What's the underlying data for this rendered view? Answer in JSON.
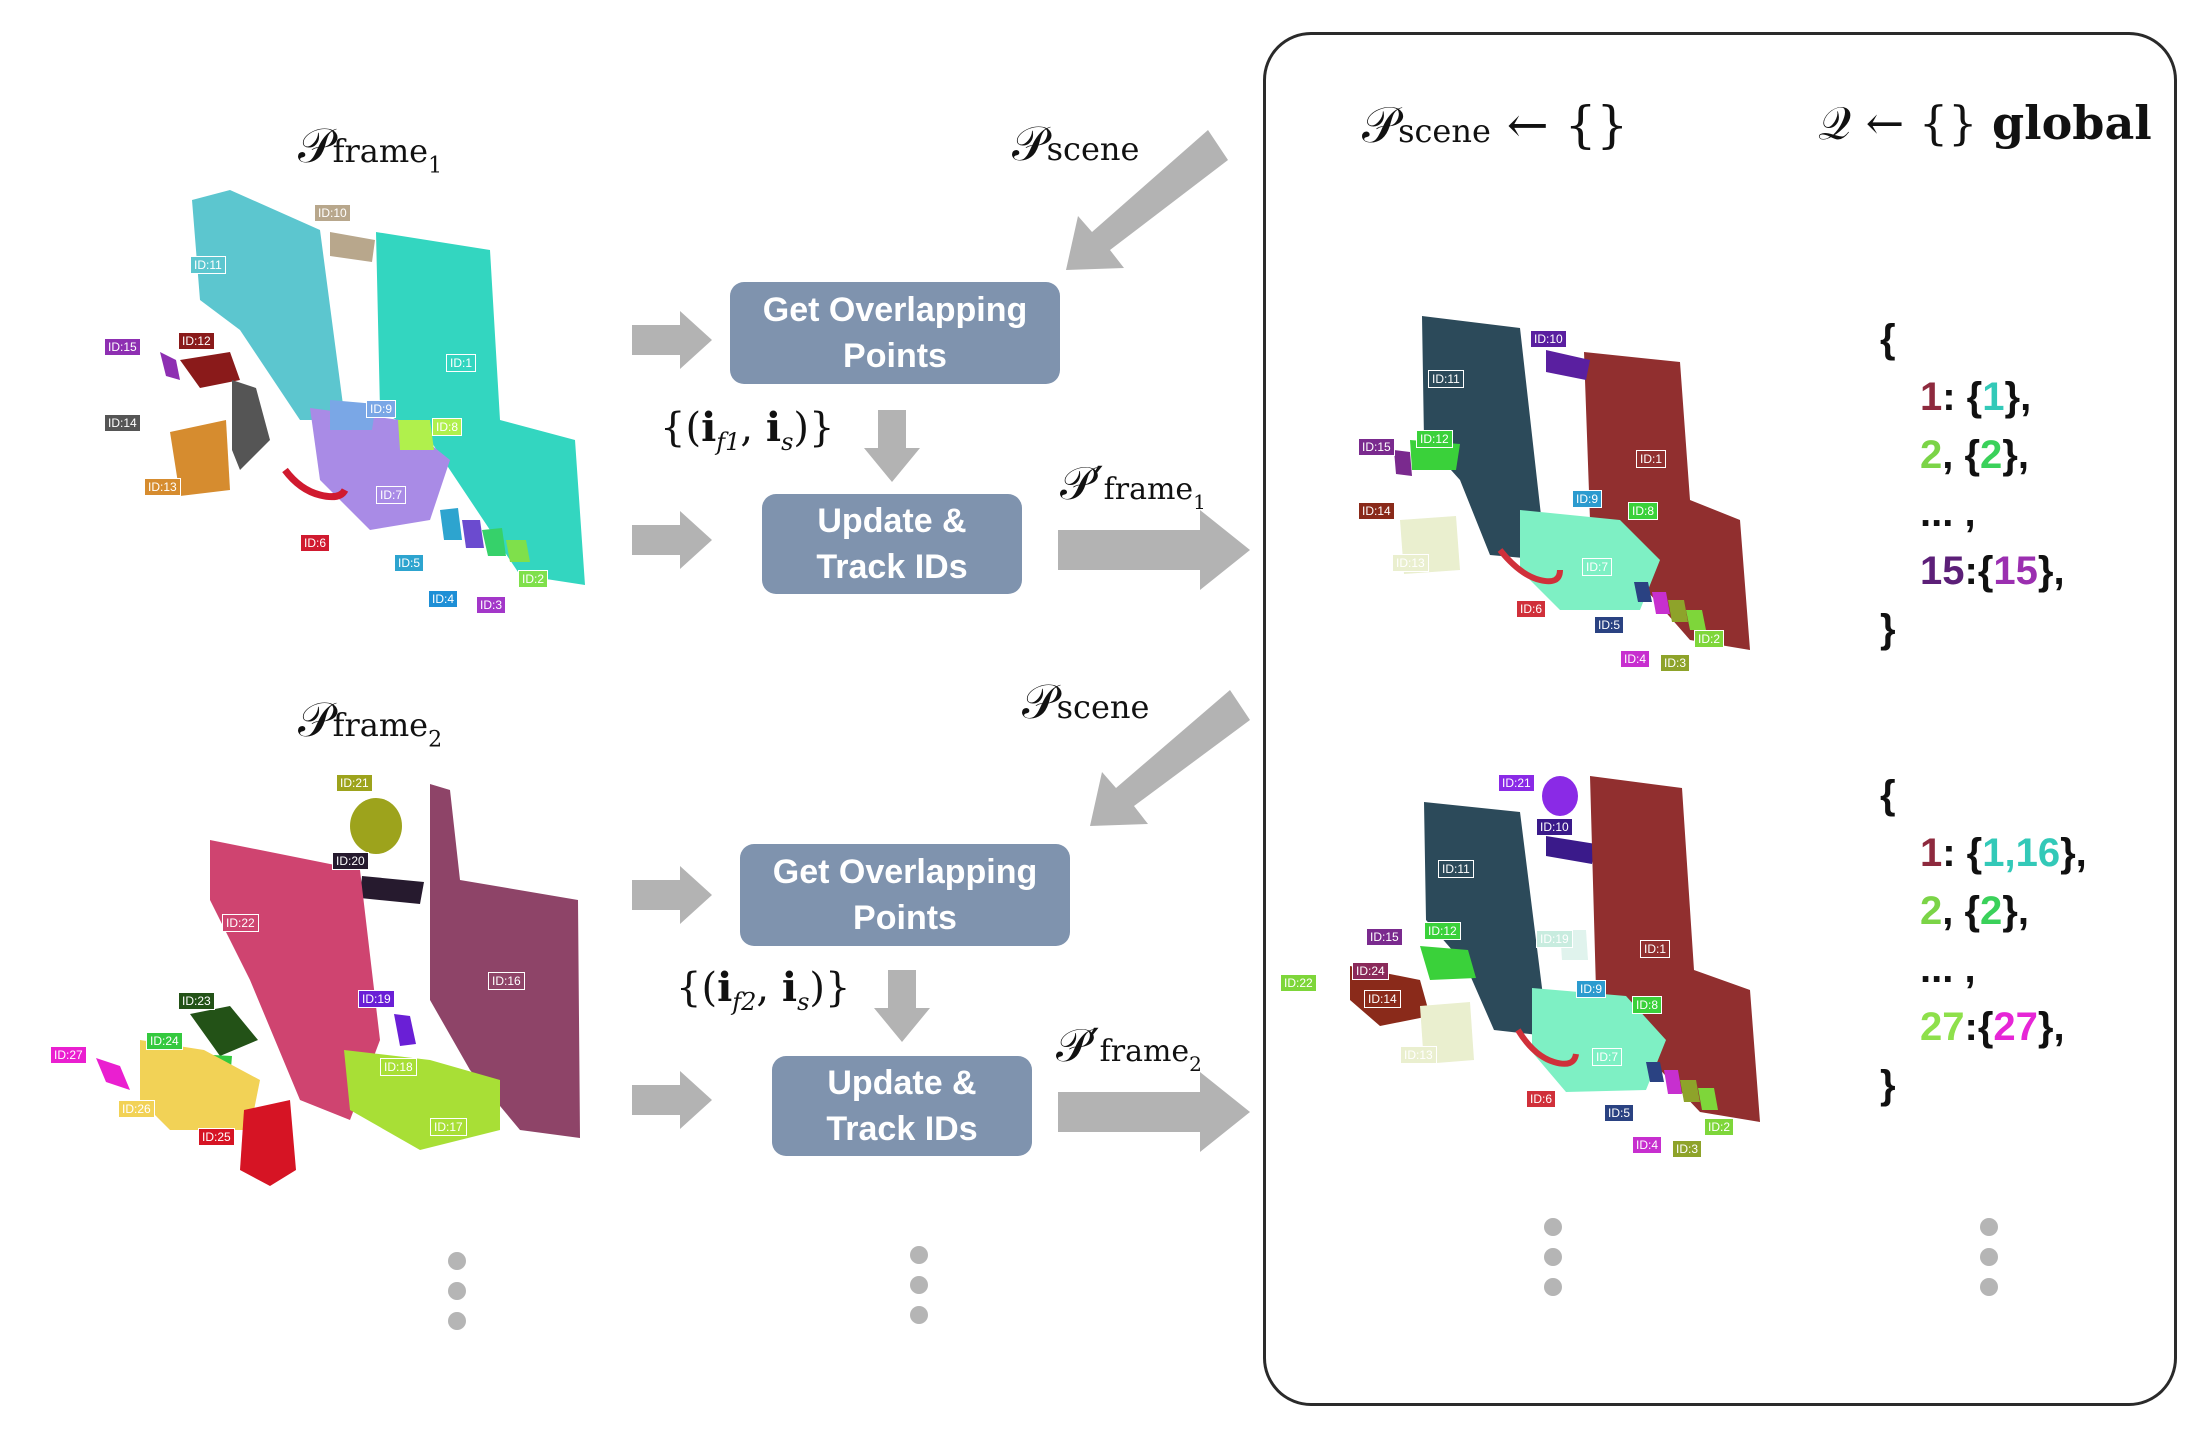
{
  "colors": {
    "box": "#7f93ae",
    "arrow": "#b3b3b3",
    "panel_border": "#2a2a2a"
  },
  "labels": {
    "p_frame1": "𝒫frame₁",
    "p_frame2": "𝒫frame₂",
    "p_scene_1": "𝒫scene",
    "p_scene_2": "𝒫scene",
    "p_prime_frame1": "𝒫′frame₁",
    "p_prime_frame2": "𝒫′frame₂",
    "pair1": "{(i_f1, i_s)}",
    "pair2": "{(i_f2, i_s)}",
    "init_scene": "𝒫scene ← {}",
    "init_q": "𝒬 ← {}",
    "global_word": "global"
  },
  "math": {
    "P": "𝒫",
    "sub_frame": "frame",
    "sub_scene": "scene",
    "sub_1": "1",
    "sub_2": "2",
    "prime": "′",
    "pair_open": "{(",
    "pair_i": "i",
    "pair_f1": "f1",
    "pair_f2": "f2",
    "pair_comma": ",",
    "pair_s": "s",
    "pair_close": ")}",
    "assign": "← {}",
    "Q": "𝒬"
  },
  "boxes": {
    "get_overlap_1": {
      "line1": "Get Overlapping",
      "line2": "Points"
    },
    "update_1": {
      "line1": "Update &",
      "line2": "Track IDs"
    },
    "get_overlap_2": {
      "line1": "Get Overlapping",
      "line2": "Points"
    },
    "update_2": {
      "line1": "Update &",
      "line2": "Track IDs"
    }
  },
  "dict1": {
    "open": "{",
    "r1_key": "1",
    "r1_sep": ": {",
    "r1_val": "1",
    "r1_end": "},",
    "r2_key": "2",
    "r2_sep": ", {",
    "r2_val": "2",
    "r2_end": "},",
    "r3": "... ,",
    "r4_key": "15",
    "r4_sep": ":{",
    "r4_val": "15",
    "r4_end": "},",
    "close": "}"
  },
  "dict2": {
    "open": "{",
    "r1_key": "1",
    "r1_sep": ": {",
    "r1_val": "1,16",
    "r1_end": "},",
    "r2_key": "2",
    "r2_sep": ", {",
    "r2_val": "2",
    "r2_end": "},",
    "r3": "... ,",
    "r4_key": "27",
    "r4_sep": ":{",
    "r4_val": "27",
    "r4_end": "},",
    "close": "}"
  },
  "frame1_ids": [
    "ID:10",
    "ID:11",
    "ID:1",
    "ID:15",
    "ID:12",
    "ID:14",
    "ID:9",
    "ID:8",
    "ID:13",
    "ID:7",
    "ID:6",
    "ID:5",
    "ID:2",
    "ID:4",
    "ID:3"
  ],
  "frame2_ids": [
    "ID:21",
    "ID:20",
    "ID:22",
    "ID:16",
    "ID:23",
    "ID:19",
    "ID:24",
    "ID:27",
    "ID:18",
    "ID:26",
    "ID:17",
    "ID:25"
  ],
  "scene1_ids": [
    "ID:10",
    "ID:11",
    "ID:15",
    "ID:12",
    "ID:1",
    "ID:9",
    "ID:8",
    "ID:14",
    "ID:13",
    "ID:7",
    "ID:6",
    "ID:5",
    "ID:2",
    "ID:4",
    "ID:3"
  ],
  "scene2_ids": [
    "ID:21",
    "ID:10",
    "ID:11",
    "ID:15",
    "ID:12",
    "ID:19",
    "ID:1",
    "ID:24",
    "ID:22",
    "ID:9",
    "ID:14",
    "ID:8",
    "ID:13",
    "ID:7",
    "ID:6",
    "ID:5",
    "ID:2",
    "ID:4",
    "ID:3"
  ]
}
